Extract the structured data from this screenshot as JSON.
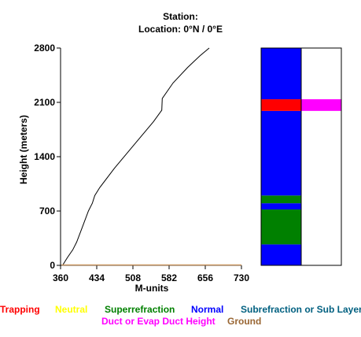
{
  "header": {
    "station_line": "Station:",
    "location_line": "Location:   0°N /   0°E"
  },
  "colors": {
    "Trapping": "#ff0000",
    "Neutral": "#ffff00",
    "Superrefraction": "#008000",
    "Normal": "#0000ff",
    "Subrefraction": "#006080",
    "Duct": "#ff00ff",
    "Ground": "#996633"
  },
  "chart_data": [
    {
      "type": "line",
      "xlabel": "M-units",
      "ylabel": "Height (meters)",
      "xlim": [
        360,
        730
      ],
      "ylim": [
        0,
        2800
      ],
      "x_ticks": [
        "360",
        "434",
        "508",
        "582",
        "656",
        "730"
      ],
      "y_ticks": [
        "0",
        "700",
        "1400",
        "2100",
        "2800"
      ],
      "series": [
        {
          "x": [
            364,
            374,
            385,
            393,
            405,
            417,
            425,
            430,
            440,
            470,
            510,
            550,
            567,
            568,
            590,
            620,
            645,
            664
          ],
          "y": [
            0,
            100,
            200,
            300,
            500,
            700,
            800,
            900,
            1000,
            1250,
            1550,
            1850,
            2000,
            2150,
            2350,
            2550,
            2700,
            2800
          ]
        }
      ],
      "ground_line_color": "#cc9966"
    },
    {
      "type": "heatmap",
      "ylim": [
        0,
        2800
      ],
      "columns": [
        {
          "name": "refraction",
          "segments": [
            {
              "from": 0,
              "to": 270,
              "class": "Normal"
            },
            {
              "from": 270,
              "to": 720,
              "class": "Superrefraction"
            },
            {
              "from": 720,
              "to": 800,
              "class": "Normal"
            },
            {
              "from": 800,
              "to": 900,
              "class": "Superrefraction"
            },
            {
              "from": 900,
              "to": 1990,
              "class": "Normal"
            },
            {
              "from": 1990,
              "to": 2140,
              "class": "Trapping"
            },
            {
              "from": 2140,
              "to": 2800,
              "class": "Normal"
            }
          ]
        },
        {
          "name": "duct",
          "segments": [
            {
              "from": 1990,
              "to": 2140,
              "class": "Duct"
            }
          ]
        }
      ]
    }
  ],
  "legend": {
    "trapping": "Trapping",
    "neutral": "Neutral",
    "superrefraction": "Superrefraction",
    "normal": "Normal",
    "subrefraction": "Subrefraction or Sub Layer",
    "duct": "Duct or Evap Duct Height",
    "ground": "Ground"
  }
}
